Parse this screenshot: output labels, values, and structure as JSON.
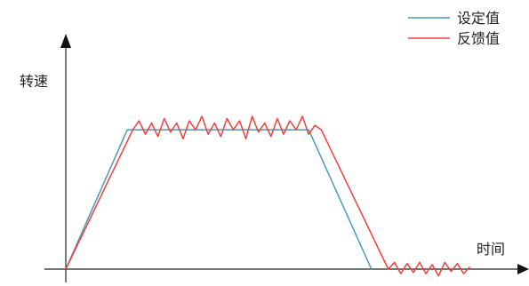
{
  "chart_data": {
    "type": "line",
    "xlabel": "时间",
    "ylabel": "转速",
    "legend_position": "top-right",
    "grid": false,
    "xlim": [
      0,
      10
    ],
    "ylim": [
      0,
      10
    ],
    "series": [
      {
        "name": "设定值",
        "color": "#4a9bb5",
        "x": [
          0,
          1.47,
          5.8,
          7.3
        ],
        "y": [
          0,
          6.2,
          6.2,
          0
        ]
      },
      {
        "name": "反馈值",
        "color": "#f0403f",
        "x": [
          0,
          1.6,
          1.75,
          1.9,
          2.05,
          2.2,
          2.35,
          2.5,
          2.65,
          2.8,
          2.95,
          3.1,
          3.25,
          3.4,
          3.55,
          3.7,
          3.85,
          4.0,
          4.15,
          4.3,
          4.45,
          4.6,
          4.75,
          4.9,
          5.05,
          5.2,
          5.35,
          5.5,
          5.65,
          5.8,
          5.95,
          6.1,
          7.7,
          7.85,
          8.0,
          8.15,
          8.3,
          8.45,
          8.6,
          8.75,
          8.9,
          9.05,
          9.2,
          9.35,
          9.5,
          9.65
        ],
        "y": [
          0,
          6.2,
          6.6,
          6.0,
          6.5,
          5.9,
          6.7,
          6.1,
          6.5,
          5.8,
          6.6,
          6.2,
          6.8,
          6.0,
          6.5,
          5.9,
          6.7,
          6.2,
          6.6,
          5.8,
          6.8,
          6.1,
          6.5,
          5.9,
          6.7,
          6.0,
          6.6,
          6.2,
          6.8,
          6.0,
          6.4,
          6.2,
          0,
          0.3,
          -0.2,
          0.25,
          -0.15,
          0.3,
          -0.2,
          0.2,
          -0.3,
          0.3,
          -0.1,
          0.25,
          -0.2,
          0.1
        ]
      }
    ]
  }
}
